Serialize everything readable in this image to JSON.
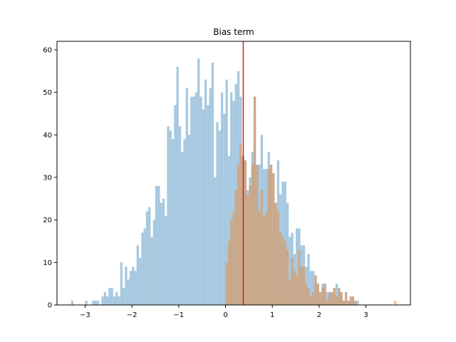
{
  "chart_data": {
    "type": "bar",
    "title": "Bias term",
    "xlabel": "",
    "ylabel": "",
    "xlim": [
      -3.6,
      3.95
    ],
    "ylim": [
      0,
      62
    ],
    "grid": false,
    "legend": "none",
    "x_ticks": [
      -3,
      -2,
      -1,
      0,
      1,
      2,
      3
    ],
    "x_tick_labels": [
      "−3",
      "−2",
      "−1",
      "0",
      "1",
      "2",
      "3"
    ],
    "y_ticks": [
      0,
      10,
      20,
      30,
      40,
      50,
      60
    ],
    "y_tick_labels": [
      "0",
      "10",
      "20",
      "30",
      "40",
      "50",
      "60"
    ],
    "bin_width": 0.05,
    "series": [
      {
        "color": "#a6c8e0",
        "start": -3.3,
        "counts": [
          1,
          0,
          0,
          0,
          0,
          0,
          1,
          0,
          0,
          1,
          1,
          1,
          0,
          2,
          3,
          2,
          4,
          4,
          2,
          3,
          2,
          10,
          4,
          9,
          6,
          8,
          9,
          8,
          14,
          11,
          17,
          18,
          22,
          23,
          16,
          20,
          28,
          28,
          24,
          25,
          21,
          42,
          41,
          39,
          47,
          56,
          42,
          36,
          39,
          51,
          40,
          49,
          49,
          50,
          58,
          49,
          46,
          53,
          47,
          51,
          57,
          30,
          43,
          41,
          50,
          45,
          53,
          35,
          50,
          48,
          52,
          55,
          49,
          35,
          28,
          27,
          30,
          36,
          45,
          29,
          33,
          40,
          32,
          32,
          36,
          27,
          16,
          20,
          34,
          26,
          29,
          29,
          24,
          16,
          17,
          12,
          18,
          18,
          14,
          14,
          9,
          12,
          8,
          8,
          5,
          5,
          3,
          5,
          4,
          3,
          3,
          3,
          3,
          5,
          3,
          2,
          1,
          0,
          0,
          1,
          0,
          0,
          1
        ],
        "bar_values_note": ""
      },
      {
        "color": "#c9a88a",
        "start": 0.0,
        "counts": [
          10,
          15,
          20,
          22,
          27,
          33,
          38,
          35,
          34,
          26,
          28,
          33,
          49,
          33,
          22,
          27,
          21,
          22,
          32,
          33,
          31,
          24,
          22,
          17,
          16,
          15,
          13,
          6,
          11,
          8,
          7,
          13,
          9,
          9,
          5,
          4,
          2,
          3,
          7,
          5,
          3,
          4,
          5,
          1,
          3,
          3,
          4,
          2,
          4,
          3,
          1,
          3,
          1,
          2,
          2,
          1
        ],
        "bar_values_note": ""
      },
      {
        "color": "#f5c08f",
        "start": 3.6,
        "counts": [
          1
        ],
        "bar_values_note": ""
      }
    ],
    "vline": {
      "x": 0.38,
      "color": "#e31a1c"
    }
  }
}
